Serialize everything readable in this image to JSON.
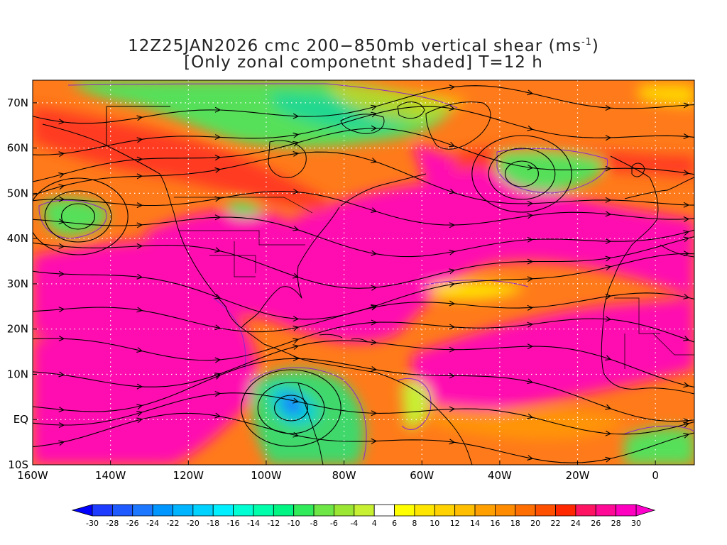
{
  "title": {
    "line1_prefix": "12Z25JAN2026 cmc 200−850mb vertical shear (ms",
    "line1_sup": "-1",
    "line1_suffix": ")",
    "line2": "[Only zonal componetnt shaded] T=12 h"
  },
  "map": {
    "lon_range": [
      -160,
      10
    ],
    "lat_range": [
      -10,
      75
    ],
    "x_ticks": [
      "160W",
      "140W",
      "120W",
      "100W",
      "80W",
      "60W",
      "40W",
      "20W",
      "0"
    ],
    "y_ticks": [
      "70N",
      "60N",
      "50N",
      "40N",
      "30N",
      "20N",
      "10N",
      "EQ",
      "10S"
    ],
    "grid": "dotted",
    "shading": "zonal component of 200-850mb vertical shear",
    "overlays": [
      "streamlines",
      "coastlines",
      "country borders",
      "purple contours"
    ]
  },
  "colorbar": {
    "labels": [
      "-30",
      "-28",
      "-26",
      "-24",
      "-22",
      "-20",
      "-18",
      "-16",
      "-14",
      "-12",
      "-10",
      "-8",
      "-6",
      "-4",
      "4",
      "6",
      "8",
      "10",
      "12",
      "14",
      "16",
      "18",
      "20",
      "22",
      "24",
      "26",
      "28",
      "30"
    ],
    "colors": [
      "#1e3cff",
      "#1e5aff",
      "#1e78ff",
      "#0096ff",
      "#00b4ff",
      "#00d2ff",
      "#00f0ff",
      "#00ffd2",
      "#00ffaa",
      "#00f582",
      "#32eb5a",
      "#6ee646",
      "#9be632",
      "#c8f032",
      "#ffffff",
      "#ffff00",
      "#ffe600",
      "#ffd200",
      "#ffbe00",
      "#ffa000",
      "#ff8c00",
      "#ff6e00",
      "#ff5000",
      "#ff2800",
      "#ff1464",
      "#ff0a96",
      "#ff00c0"
    ],
    "ends": {
      "low": "#0000ff",
      "high": "#ff00cc"
    }
  }
}
